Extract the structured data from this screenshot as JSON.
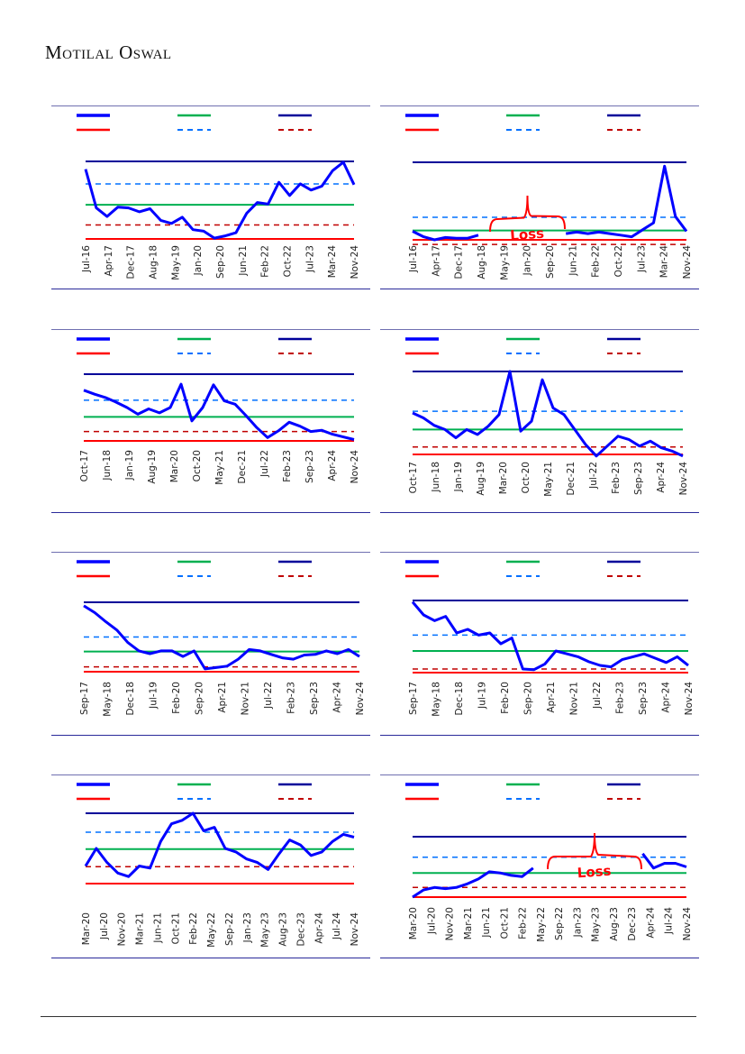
{
  "header": {
    "brand": "Motilal Oswal"
  },
  "colors": {
    "series": "#0000ff",
    "max": "#000099",
    "mean": "#00b050",
    "plus_sd": "#0070ff",
    "min": "#ff0000",
    "minus_sd": "#c00000",
    "annotation": "#ff0000"
  },
  "chart_data": [
    {
      "type": "line",
      "x_ticks": [
        "Jul-16",
        "Apr-17",
        "Dec-17",
        "Aug-18",
        "May-19",
        "Jan-20",
        "Sep-20",
        "Jun-21",
        "Feb-22",
        "Oct-22",
        "Jul-23",
        "Mar-24",
        "Nov-24"
      ],
      "levels": {
        "max": 100,
        "plus_sd": 71,
        "mean": 44,
        "minus_sd": 18,
        "min": 0
      },
      "values": [
        90,
        40,
        29,
        41,
        40,
        35,
        39,
        24,
        20,
        28,
        12,
        10,
        1,
        4,
        8,
        33,
        47,
        45,
        73,
        56,
        71,
        63,
        68,
        88,
        99,
        70
      ]
    },
    {
      "type": "line",
      "x_ticks": [
        "Jul-16",
        "Apr-17",
        "Dec-17",
        "Aug-18",
        "May-19",
        "Jan-20",
        "Sep-20",
        "Jun-21",
        "Feb-22",
        "Oct-22",
        "Jul-23",
        "Mar-24",
        "Nov-24"
      ],
      "levels": {
        "max": 100,
        "plus_sd": 29,
        "mean": 12,
        "minus_sd": -6,
        "min": 0
      },
      "values": [
        11,
        4,
        0,
        3,
        2,
        2,
        6,
        null,
        null,
        null,
        null,
        null,
        null,
        null,
        8,
        10,
        8,
        10,
        8,
        6,
        4,
        13,
        22,
        95,
        30,
        11
      ],
      "annotation": {
        "text": "Loss",
        "from": "Nov-18",
        "to": "Apr-21"
      }
    },
    {
      "type": "line",
      "x_ticks": [
        "Oct-17",
        "Jun-18",
        "Jan-19",
        "Aug-19",
        "Mar-20",
        "Oct-20",
        "May-21",
        "Dec-21",
        "Jul-22",
        "Feb-23",
        "Sep-23",
        "Apr-24",
        "Nov-24"
      ],
      "levels": {
        "max": 100,
        "plus_sd": 61,
        "mean": 36,
        "minus_sd": 14,
        "min": 0
      },
      "values": [
        76,
        70,
        65,
        58,
        50,
        40,
        48,
        42,
        50,
        85,
        30,
        50,
        84,
        60,
        55,
        38,
        20,
        5,
        15,
        28,
        22,
        14,
        16,
        10,
        6,
        2
      ]
    },
    {
      "type": "line",
      "x_ticks": [
        "Oct-17",
        "Jun-18",
        "Jan-19",
        "Aug-19",
        "Mar-20",
        "Oct-20",
        "May-21",
        "Dec-21",
        "Jul-22",
        "Feb-23",
        "Sep-23",
        "Apr-24",
        "Nov-24"
      ],
      "levels": {
        "max": 100,
        "plus_sd": 52,
        "mean": 30,
        "minus_sd": 9,
        "min": 0
      },
      "values": [
        50,
        44,
        35,
        30,
        20,
        30,
        24,
        34,
        48,
        100,
        28,
        40,
        90,
        56,
        48,
        30,
        12,
        -2,
        10,
        22,
        18,
        10,
        16,
        8,
        4,
        -2
      ]
    },
    {
      "type": "line",
      "x_ticks": [
        "Sep-17",
        "May-18",
        "Dec-18",
        "Jul-19",
        "Feb-20",
        "Sep-20",
        "Apr-21",
        "Nov-21",
        "Jul-22",
        "Feb-23",
        "Sep-23",
        "Apr-24",
        "Nov-24"
      ],
      "levels": {
        "max": 100,
        "plus_sd": 50,
        "mean": 29,
        "minus_sd": 7,
        "min": 0
      },
      "values": [
        95,
        85,
        72,
        60,
        42,
        30,
        26,
        30,
        30,
        22,
        30,
        4,
        6,
        8,
        18,
        32,
        30,
        25,
        20,
        18,
        24,
        25,
        30,
        26,
        32,
        22
      ]
    },
    {
      "type": "line",
      "x_ticks": [
        "Sep-17",
        "May-18",
        "Dec-18",
        "Jul-19",
        "Feb-20",
        "Sep-20",
        "Apr-21",
        "Nov-21",
        "Jul-22",
        "Feb-23",
        "Sep-23",
        "Apr-24",
        "Nov-24"
      ],
      "levels": {
        "max": 100,
        "plus_sd": 52,
        "mean": 30,
        "minus_sd": 5,
        "min": 0
      },
      "values": [
        98,
        80,
        72,
        78,
        55,
        60,
        52,
        55,
        40,
        48,
        5,
        4,
        12,
        30,
        26,
        22,
        15,
        10,
        8,
        18,
        22,
        26,
        20,
        14,
        22,
        10
      ]
    },
    {
      "type": "line",
      "x_ticks": [
        "Mar-20",
        "Jul-20",
        "Nov-20",
        "Mar-21",
        "Jun-21",
        "Oct-21",
        "Feb-22",
        "May-22",
        "Sep-22",
        "Jan-23",
        "May-23",
        "Aug-23",
        "Dec-23",
        "Apr-24",
        "Jul-24",
        "Nov-24"
      ],
      "levels": {
        "max": 100,
        "plus_sd": 73,
        "mean": 49,
        "minus_sd": 24,
        "min": 0
      },
      "values": [
        25,
        50,
        30,
        15,
        10,
        25,
        22,
        60,
        85,
        90,
        100,
        75,
        80,
        50,
        45,
        35,
        30,
        20,
        42,
        62,
        55,
        40,
        45,
        60,
        70,
        66
      ]
    },
    {
      "type": "line",
      "x_ticks": [
        "Mar-20",
        "Jul-20",
        "Nov-20",
        "Mar-21",
        "Jun-21",
        "Oct-21",
        "Feb-22",
        "May-22",
        "Sep-22",
        "Jan-23",
        "May-23",
        "Aug-23",
        "Dec-23",
        "Apr-24",
        "Jul-24",
        "Nov-24"
      ],
      "levels": {
        "max": 100,
        "plus_sd": 66,
        "mean": 40,
        "minus_sd": 16,
        "min": 0
      },
      "values": [
        0,
        12,
        16,
        14,
        16,
        22,
        30,
        42,
        40,
        36,
        34,
        48,
        null,
        null,
        null,
        null,
        null,
        null,
        null,
        null,
        null,
        72,
        48,
        56,
        56,
        50
      ],
      "annotation": {
        "text": "Loss",
        "from": "Jul-22",
        "to": "Feb-24"
      }
    }
  ]
}
